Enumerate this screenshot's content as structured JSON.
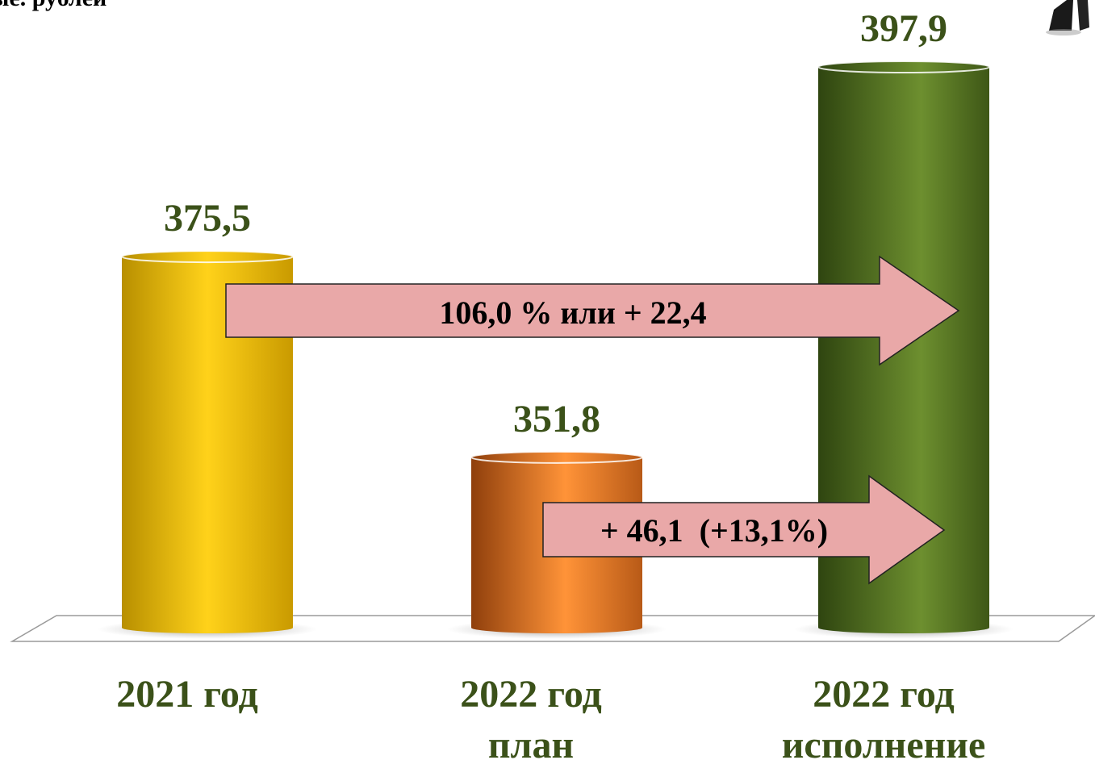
{
  "chart_data": {
    "type": "bar",
    "units_label": "ые. рублей",
    "categories": [
      [
        "2021 год"
      ],
      [
        "2022 год",
        "план"
      ],
      [
        "2022 год",
        "исполнение"
      ]
    ],
    "values": [
      375.5,
      351.8,
      397.9
    ],
    "value_labels": [
      "375,5",
      "351,8",
      "397,9"
    ],
    "colors": [
      "#f5c400",
      "#f0812a",
      "#5b7a22"
    ],
    "annotations": [
      {
        "text": "106,0 % или + 22,4",
        "from": "2021 год",
        "to": "2022 год исполнение"
      },
      {
        "text": "+ 46,1  (+13,1%)",
        "from": "2022 год план",
        "to": "2022 год исполнение"
      }
    ]
  }
}
